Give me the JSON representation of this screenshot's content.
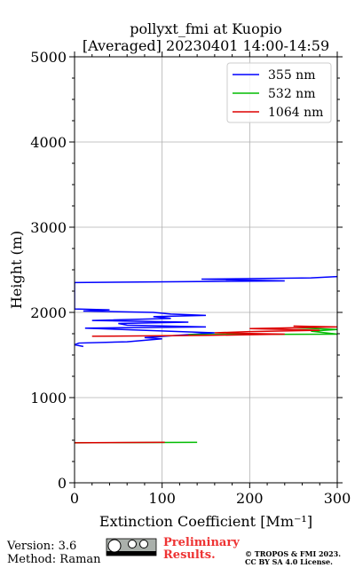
{
  "chart_data": {
    "type": "line",
    "title": "pollyxt_fmi at Kuopio",
    "subtitle": "[Averaged] 20230401 14:00-14:59",
    "x_label": "Extinction Coefficient [Mm⁻¹]",
    "y_label": "Height (m)",
    "xlim": [
      0,
      300
    ],
    "ylim": [
      0,
      5000
    ],
    "xticks": [
      0,
      100,
      200,
      300
    ],
    "yticks": [
      0,
      1000,
      2000,
      3000,
      4000,
      5000
    ],
    "xticks_minor": [
      20,
      40,
      60,
      80,
      120,
      140,
      160,
      180,
      220,
      240,
      260,
      280
    ],
    "yticks_minor": [
      250,
      500,
      750,
      1250,
      1500,
      1750,
      2250,
      2500,
      2750,
      3250,
      3500,
      3750,
      4250,
      4500,
      4750
    ],
    "grid": true,
    "legend": "upper right",
    "series": [
      {
        "name": "355 nm",
        "color": "#0000ff",
        "x": [
          10,
          0,
          5,
          60,
          100,
          80,
          160,
          120,
          12,
          150,
          60,
          50,
          130,
          20,
          110,
          90,
          150,
          110,
          90,
          10,
          40,
          0,
          0,
          240,
          145,
          270,
          300
        ],
        "y": [
          1600,
          1620,
          1640,
          1655,
          1690,
          1705,
          1760,
          1775,
          1815,
          1830,
          1850,
          1870,
          1885,
          1905,
          1930,
          1950,
          1965,
          1980,
          2000,
          2015,
          2030,
          2040,
          2350,
          2370,
          2390,
          2405,
          2420
        ]
      },
      {
        "name": "532 nm",
        "color": "#00bb00",
        "x": [
          0,
          140,
          null,
          130,
          300,
          270,
          300,
          250
        ],
        "y": [
          470,
          475,
          null,
          1740,
          1745,
          1780,
          1800,
          1820
        ]
      },
      {
        "name": "1064 nm",
        "color": "#dd0000",
        "x": [
          0,
          103,
          null,
          20,
          150,
          240,
          160,
          200,
          280,
          200,
          300,
          250
        ],
        "y": [
          470,
          475,
          null,
          1720,
          1730,
          1745,
          1760,
          1775,
          1790,
          1810,
          1830,
          1840
        ]
      }
    ]
  },
  "footer": {
    "version": "Version: 3.6",
    "method": "Method: Raman",
    "preliminary": [
      "Preliminary",
      "Results."
    ],
    "copyright": "© TROPOS & FMI 2023.",
    "license": "CC BY SA 4.0 License."
  }
}
